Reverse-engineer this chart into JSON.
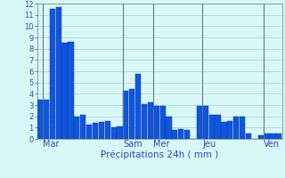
{
  "values": [
    3.5,
    3.5,
    11.5,
    11.7,
    8.5,
    8.6,
    2.0,
    2.1,
    1.3,
    1.4,
    1.5,
    1.6,
    1.0,
    1.1,
    4.3,
    4.4,
    5.8,
    3.1,
    3.2,
    2.9,
    2.9,
    2.0,
    0.8,
    0.9,
    0.8,
    0.0,
    2.9,
    2.9,
    2.1,
    2.1,
    1.5,
    1.6,
    2.0,
    2.0,
    0.5,
    0.0,
    0.3,
    0.5,
    0.5,
    0.5
  ],
  "bar_color": "#1155dd",
  "bar_edge_color": "#0033aa",
  "background_color": "#d8f8f8",
  "grid_color": "#b0cccc",
  "xlabel": "Précipitations 24h ( mm )",
  "xlabel_color": "#3344bb",
  "tick_color": "#3344bb",
  "ylim": [
    0,
    12
  ],
  "yticks": [
    0,
    1,
    2,
    3,
    4,
    5,
    6,
    7,
    8,
    9,
    10,
    11,
    12
  ],
  "day_labels": [
    "Mar",
    "Sam",
    "Mer",
    "Jeu",
    "Ven"
  ],
  "day_tick_positions": [
    0.5,
    13.5,
    18.5,
    26.5,
    36.5
  ],
  "vline_positions": [
    0.5,
    13.5,
    18.5,
    26.5,
    36.5
  ],
  "vline_color": "#667788",
  "n_bars": 40,
  "figwidth": 3.2,
  "figheight": 2.0,
  "dpi": 100
}
